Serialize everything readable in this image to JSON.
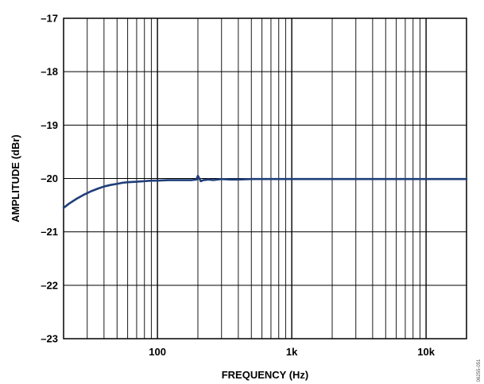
{
  "chart_data": {
    "type": "line",
    "title": "",
    "xlabel": "FREQUENCY (Hz)",
    "ylabel": "AMPLITUDE (dBr)",
    "x_scale": "log",
    "xlim": [
      20,
      20000
    ],
    "ylim": [
      -23,
      -17
    ],
    "grid": true,
    "legend": "none",
    "x_tick_labels": [
      {
        "value": 100,
        "label": "100"
      },
      {
        "value": 1000,
        "label": "1k"
      },
      {
        "value": 10000,
        "label": "10k"
      }
    ],
    "y_tick_labels": [
      {
        "value": -17,
        "label": "–17"
      },
      {
        "value": -18,
        "label": "–18"
      },
      {
        "value": -19,
        "label": "–19"
      },
      {
        "value": -20,
        "label": "–20"
      },
      {
        "value": -21,
        "label": "–21"
      },
      {
        "value": -22,
        "label": "–22"
      },
      {
        "value": -23,
        "label": "–23"
      }
    ],
    "series": [
      {
        "color": "#1f3e7a",
        "x": [
          20,
          22,
          25,
          28,
          32,
          36,
          40,
          45,
          50,
          55,
          60,
          70,
          80,
          90,
          100,
          120,
          150,
          180,
          195,
          200,
          205,
          210,
          220,
          240,
          260,
          300,
          350,
          400,
          500,
          700,
          1000,
          2000,
          5000,
          10000,
          20000
        ],
        "y": [
          -20.55,
          -20.47,
          -20.38,
          -20.31,
          -20.24,
          -20.19,
          -20.15,
          -20.12,
          -20.1,
          -20.08,
          -20.07,
          -20.06,
          -20.05,
          -20.04,
          -20.04,
          -20.03,
          -20.03,
          -20.03,
          -20.02,
          -19.95,
          -20.0,
          -20.05,
          -20.03,
          -20.02,
          -20.03,
          -20.01,
          -20.02,
          -20.02,
          -20.01,
          -20.01,
          -20.01,
          -20.01,
          -20.01,
          -20.01,
          -20.01
        ]
      }
    ]
  },
  "side_code": "06255-051"
}
